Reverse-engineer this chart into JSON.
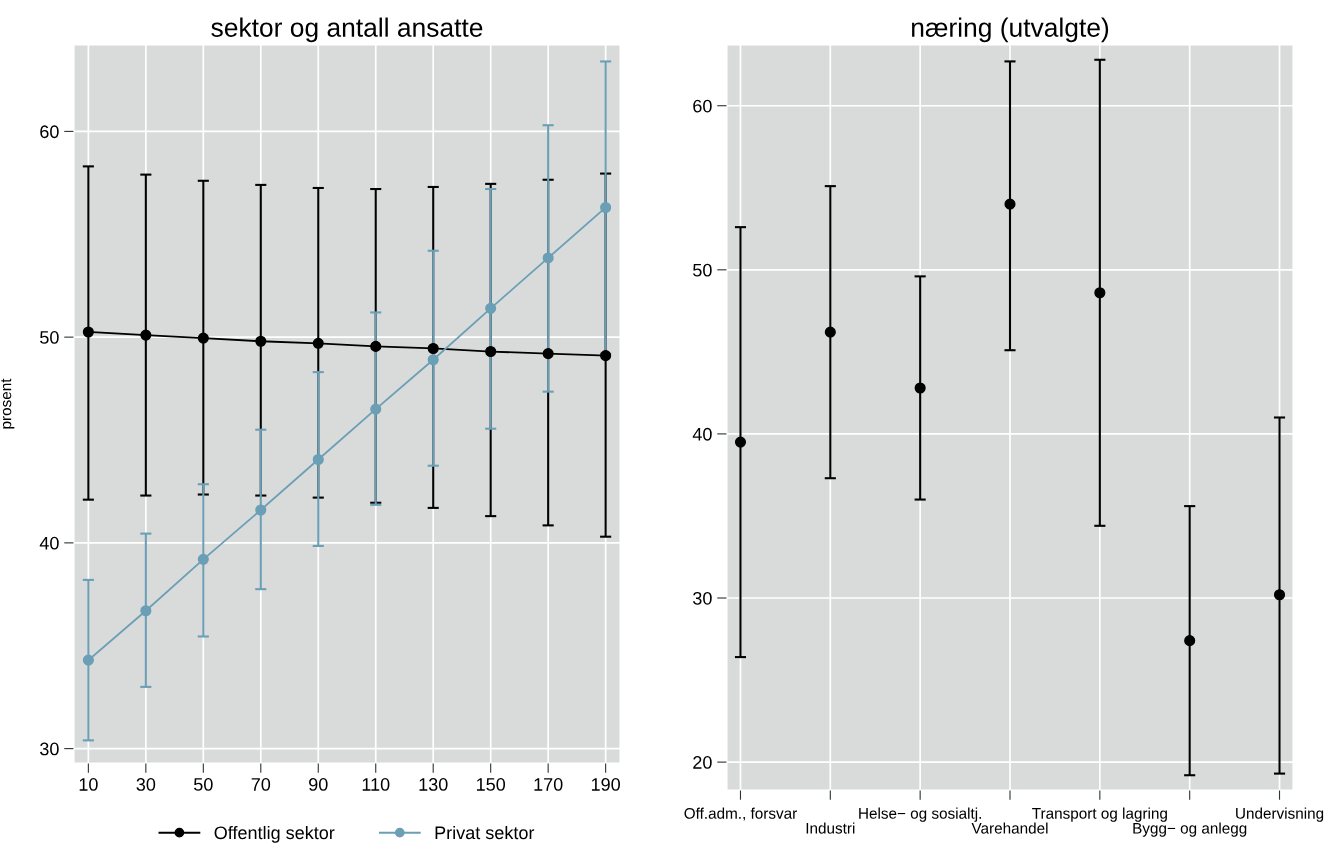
{
  "chart_data": [
    {
      "type": "line",
      "title": "sektor og antall ansatte",
      "ylabel": "prosent",
      "x": [
        10,
        30,
        50,
        70,
        90,
        110,
        130,
        150,
        170,
        190
      ],
      "xlim": [
        5,
        195
      ],
      "xticks": [
        10,
        30,
        50,
        70,
        90,
        110,
        130,
        150,
        170,
        190
      ],
      "ylim": [
        29.3,
        64.2
      ],
      "yticks": [
        30,
        40,
        50,
        60
      ],
      "grid": true,
      "legend": "bottom",
      "marker": "circle",
      "line_style": "solid",
      "series": [
        {
          "name": "Offentlig sektor",
          "color": "#000000",
          "values": [
            50.25,
            50.1,
            49.95,
            49.8,
            49.7,
            49.55,
            49.45,
            49.3,
            49.2,
            49.1
          ],
          "errors": [
            [
              42.1,
              58.3
            ],
            [
              42.3,
              57.9
            ],
            [
              42.35,
              57.6
            ],
            [
              42.3,
              57.4
            ],
            [
              42.2,
              57.25
            ],
            [
              41.95,
              57.2
            ],
            [
              41.7,
              57.3
            ],
            [
              41.3,
              57.45
            ],
            [
              40.85,
              57.65
            ],
            [
              40.3,
              57.95
            ]
          ]
        },
        {
          "name": "Privat sektor",
          "color": "#6a9fb5",
          "values": [
            34.3,
            36.7,
            39.2,
            41.6,
            44.05,
            46.5,
            48.9,
            51.4,
            53.85,
            56.3
          ],
          "errors": [
            [
              30.4,
              38.2
            ],
            [
              33.0,
              40.45
            ],
            [
              35.45,
              42.85
            ],
            [
              37.75,
              45.5
            ],
            [
              39.85,
              48.3
            ],
            [
              41.85,
              51.2
            ],
            [
              43.75,
              54.2
            ],
            [
              45.55,
              57.2
            ],
            [
              47.35,
              60.3
            ],
            [
              49.2,
              63.4
            ]
          ]
        }
      ]
    },
    {
      "type": "scatter",
      "title": "næring (utvalgte)",
      "categories": [
        "Off.adm., forsvar",
        "Industri",
        "Helse− og sosialtj.",
        "Varehandel",
        "Transport og lagring",
        "Bygg− og anlegg",
        "Undervisning"
      ],
      "ylim": [
        18.3,
        63.7
      ],
      "yticks": [
        20,
        30,
        40,
        50,
        60
      ],
      "grid": true,
      "marker": "circle",
      "series": [
        {
          "color": "#000000",
          "values": [
            39.5,
            46.2,
            42.8,
            54.0,
            48.6,
            27.4,
            30.2
          ],
          "errors": [
            [
              26.4,
              52.6
            ],
            [
              37.3,
              55.1
            ],
            [
              36.0,
              49.6
            ],
            [
              45.1,
              62.7
            ],
            [
              34.4,
              62.8
            ],
            [
              19.2,
              35.6
            ],
            [
              19.3,
              41.0
            ]
          ]
        }
      ]
    }
  ]
}
